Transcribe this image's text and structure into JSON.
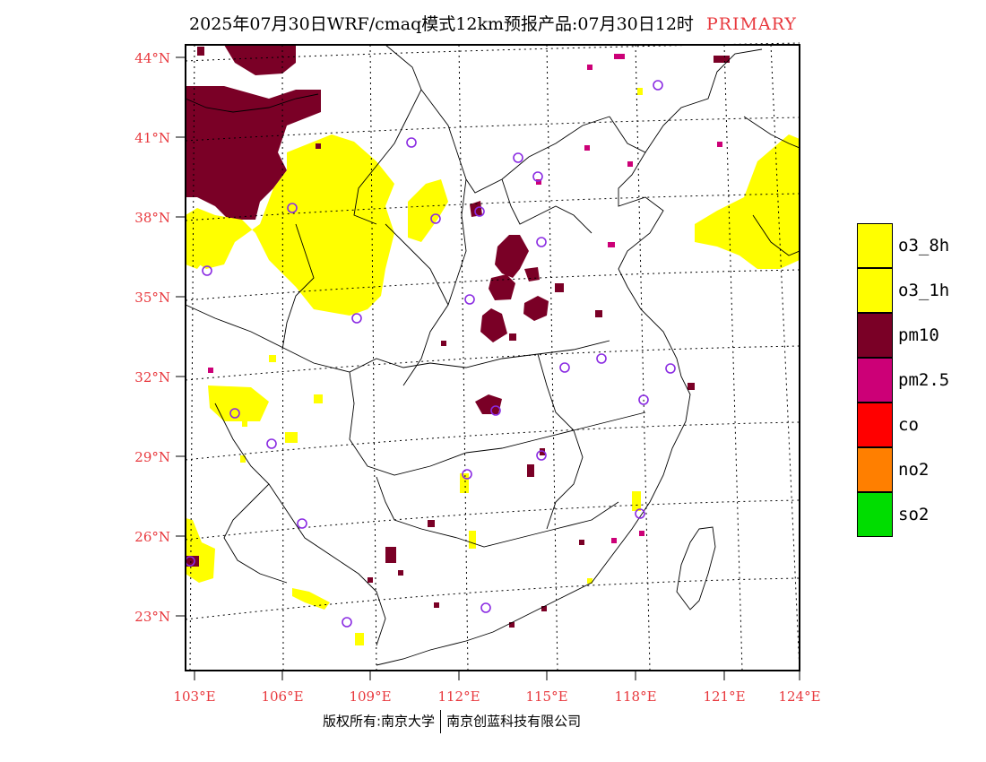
{
  "title": {
    "main": "2025年07月30日WRF/cmaq模式12km预报产品:07月30日12时",
    "tag": "PRIMARY"
  },
  "colors": {
    "o3_8h": "#ffff00",
    "o3_1h": "#ffff00",
    "pm10": "#7a0026",
    "pm25": "#cc0077",
    "co": "#ff0000",
    "no2": "#ff7f00",
    "so2": "#00dd00",
    "station": "#8a2be2",
    "axis_label": "#e8383d"
  },
  "lat_labels": [
    "44°N",
    "41°N",
    "38°N",
    "35°N",
    "32°N",
    "29°N",
    "26°N",
    "23°N"
  ],
  "lon_labels": [
    "103°E",
    "106°E",
    "109°E",
    "112°E",
    "115°E",
    "118°E",
    "121°E",
    "124°E"
  ],
  "legend": [
    {
      "label": "o3_8h",
      "color": "#ffff00"
    },
    {
      "label": "o3_1h",
      "color": "#ffff00"
    },
    {
      "label": "pm10",
      "color": "#7a0026"
    },
    {
      "label": "pm2.5",
      "color": "#cc0077"
    },
    {
      "label": "co",
      "color": "#ff0000"
    },
    {
      "label": "no2",
      "color": "#ff7f00"
    },
    {
      "label": "so2",
      "color": "#00dd00"
    }
  ],
  "footer": {
    "left": "版权所有:南京大学",
    "right": "南京创蓝科技有限公司"
  }
}
